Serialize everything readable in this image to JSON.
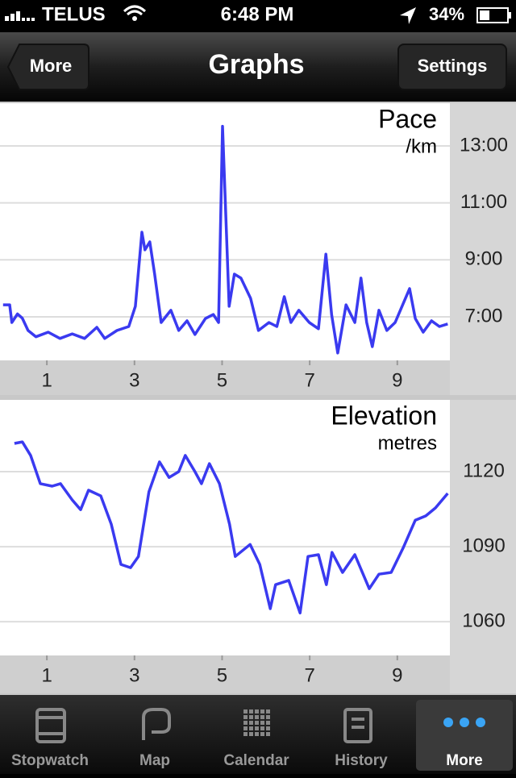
{
  "status_bar": {
    "carrier": "TELUS",
    "time": "6:48 PM",
    "battery": "34%"
  },
  "nav_bar": {
    "back": "More",
    "title": "Graphs",
    "right": "Settings"
  },
  "chart_data": [
    {
      "type": "line",
      "title": "Pace",
      "subtitle": "/km",
      "color": "#3a3af0",
      "x": [
        0,
        0.15,
        0.2,
        0.33,
        0.44,
        0.57,
        0.75,
        1.03,
        1.3,
        1.58,
        1.86,
        2.14,
        2.32,
        2.6,
        2.87,
        3.02,
        3.17,
        3.24,
        3.35,
        3.46,
        3.61,
        3.83,
        4.01,
        4.2,
        4.38,
        4.62,
        4.8,
        4.92,
        5.01,
        5.08,
        5.16,
        5.28,
        5.43,
        5.65,
        5.83,
        6.07,
        6.25,
        6.42,
        6.57,
        6.75,
        6.99,
        7.2,
        7.37,
        7.5,
        7.64,
        7.83,
        8.03,
        8.17,
        8.3,
        8.43,
        8.58,
        8.76,
        8.95,
        9.28,
        9.41,
        9.59,
        9.78,
        9.96,
        10.15
      ],
      "values": [
        7.42,
        7.42,
        6.8,
        7.1,
        6.95,
        6.52,
        6.3,
        6.46,
        6.24,
        6.4,
        6.24,
        6.63,
        6.24,
        6.52,
        6.66,
        7.37,
        9.97,
        9.35,
        9.63,
        8.5,
        6.8,
        7.23,
        6.52,
        6.86,
        6.38,
        6.94,
        7.08,
        6.8,
        13.69,
        10.77,
        7.37,
        8.5,
        8.36,
        7.65,
        6.52,
        6.8,
        6.66,
        7.71,
        6.8,
        7.23,
        6.8,
        6.58,
        9.2,
        7.08,
        5.73,
        7.42,
        6.8,
        8.36,
        6.8,
        5.95,
        7.23,
        6.52,
        6.8,
        7.99,
        6.94,
        6.46,
        6.86,
        6.66,
        6.75
      ],
      "xlim": [
        -0.07,
        10.2
      ],
      "xticks": [
        1,
        3,
        5,
        7,
        9
      ],
      "ylim": [
        5.47,
        14.5
      ],
      "yticks": [
        {
          "value": 7,
          "label": "7:00"
        },
        {
          "value": 9,
          "label": "9:00"
        },
        {
          "value": 11,
          "label": "11:00"
        },
        {
          "value": 13,
          "label": "13:00"
        }
      ],
      "grid": true
    },
    {
      "type": "line",
      "title": "Elevation",
      "subtitle": "metres",
      "color": "#3a3af0",
      "x": [
        0.26,
        0.44,
        0.63,
        0.85,
        1.12,
        1.31,
        1.58,
        1.77,
        1.95,
        2.23,
        2.47,
        2.69,
        2.91,
        3.09,
        3.33,
        3.57,
        3.79,
        4.01,
        4.16,
        4.38,
        4.53,
        4.71,
        4.94,
        5.17,
        5.3,
        5.64,
        5.86,
        6.1,
        6.22,
        6.52,
        6.78,
        6.96,
        7.2,
        7.38,
        7.51,
        7.75,
        8.03,
        8.36,
        8.58,
        8.86,
        9.13,
        9.41,
        9.65,
        9.87,
        10.15
      ],
      "values": [
        1131.3,
        1131.9,
        1126.5,
        1115.2,
        1114.2,
        1115.2,
        1108.7,
        1104.8,
        1112.6,
        1110.3,
        1099,
        1082.9,
        1081.6,
        1086.1,
        1111.9,
        1123.9,
        1117.7,
        1120,
        1126.5,
        1120,
        1115.2,
        1123.2,
        1115.2,
        1099,
        1086.1,
        1090.9,
        1082.9,
        1065.2,
        1074.8,
        1076.5,
        1063.5,
        1086.1,
        1086.8,
        1074.8,
        1087.7,
        1079.7,
        1086.8,
        1073.2,
        1079,
        1079.7,
        1089.4,
        1100.6,
        1102.3,
        1105.5,
        1111.3
      ],
      "xlim": [
        -0.07,
        10.2
      ],
      "xticks": [
        1,
        3,
        5,
        7,
        9
      ],
      "ylim": [
        1046.5,
        1148.7
      ],
      "yticks": [
        1060,
        1090,
        1120
      ],
      "grid": true
    }
  ],
  "tab_bar": [
    "Stopwatch",
    "Map",
    "Calendar",
    "History",
    "More"
  ]
}
